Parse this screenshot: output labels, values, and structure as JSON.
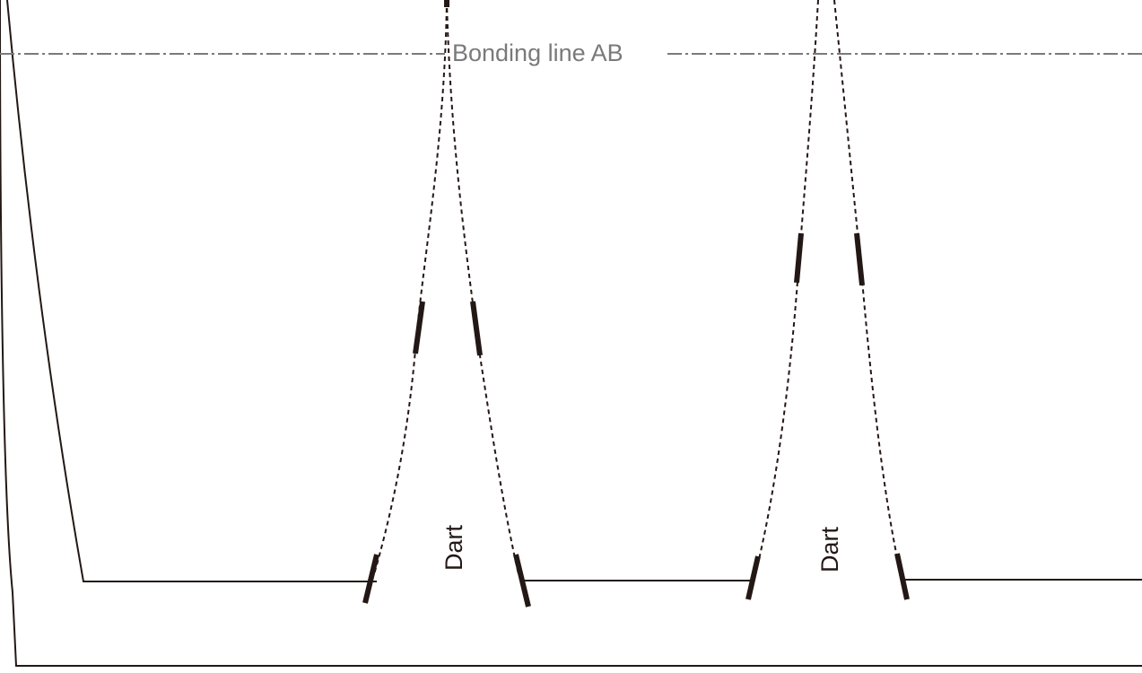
{
  "bonding_line": {
    "label": "Bonding line AB",
    "color": "#7a7a7a"
  },
  "darts": [
    {
      "label": "Dart"
    },
    {
      "label": "Dart"
    }
  ],
  "colors": {
    "outline": "#231815",
    "dashed": "#231815",
    "notch": "#231815",
    "background": "#ffffff"
  }
}
